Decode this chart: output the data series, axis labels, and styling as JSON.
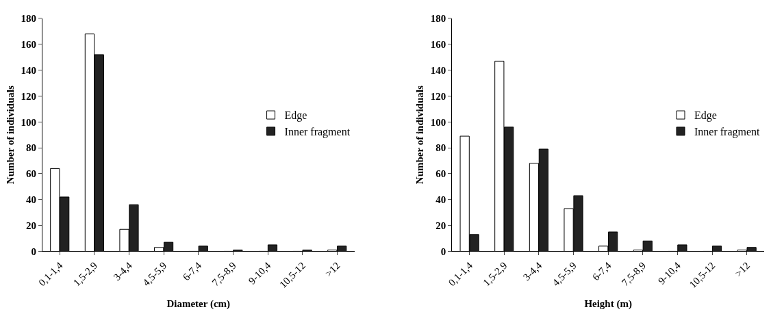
{
  "chart_data": [
    {
      "type": "bar",
      "xlabel": "Diameter (cm)",
      "ylabel": "Number of individuals",
      "categories": [
        "0,1-1,4",
        "1,5-2,9",
        "3-4,4",
        "4,5-5,9",
        "6-7,4",
        "7,5-8,9",
        "9-10,4",
        "10,5-12",
        ">12"
      ],
      "ylim": [
        0,
        180
      ],
      "yticks": [
        0,
        20,
        40,
        60,
        80,
        100,
        120,
        140,
        160,
        180
      ],
      "legend": "right",
      "series": [
        {
          "name": "Edge",
          "color": "#ffffff",
          "values": [
            64,
            168,
            17,
            3,
            0,
            0,
            0,
            0,
            1
          ]
        },
        {
          "name": "Inner fragment",
          "color": "#222222",
          "values": [
            42,
            152,
            36,
            7,
            4,
            1,
            5,
            1,
            4
          ]
        }
      ]
    },
    {
      "type": "bar",
      "xlabel": "Height (m)",
      "ylabel": "Number of individuals",
      "categories": [
        "0,1-1,4",
        "1,5-2,9",
        "3-4,4",
        "4,5-5,9",
        "6-7,4",
        "7,5-8,9",
        "9-10,4",
        "10,5-12",
        ">12"
      ],
      "ylim": [
        0,
        180
      ],
      "yticks": [
        0,
        20,
        40,
        60,
        80,
        100,
        120,
        140,
        160,
        180
      ],
      "legend": "right",
      "series": [
        {
          "name": "Edge",
          "color": "#ffffff",
          "values": [
            89,
            147,
            68,
            33,
            4,
            1,
            0,
            0,
            1
          ]
        },
        {
          "name": "Inner fragment",
          "color": "#222222",
          "values": [
            13,
            96,
            79,
            43,
            15,
            8,
            5,
            4,
            3
          ]
        }
      ]
    }
  ]
}
